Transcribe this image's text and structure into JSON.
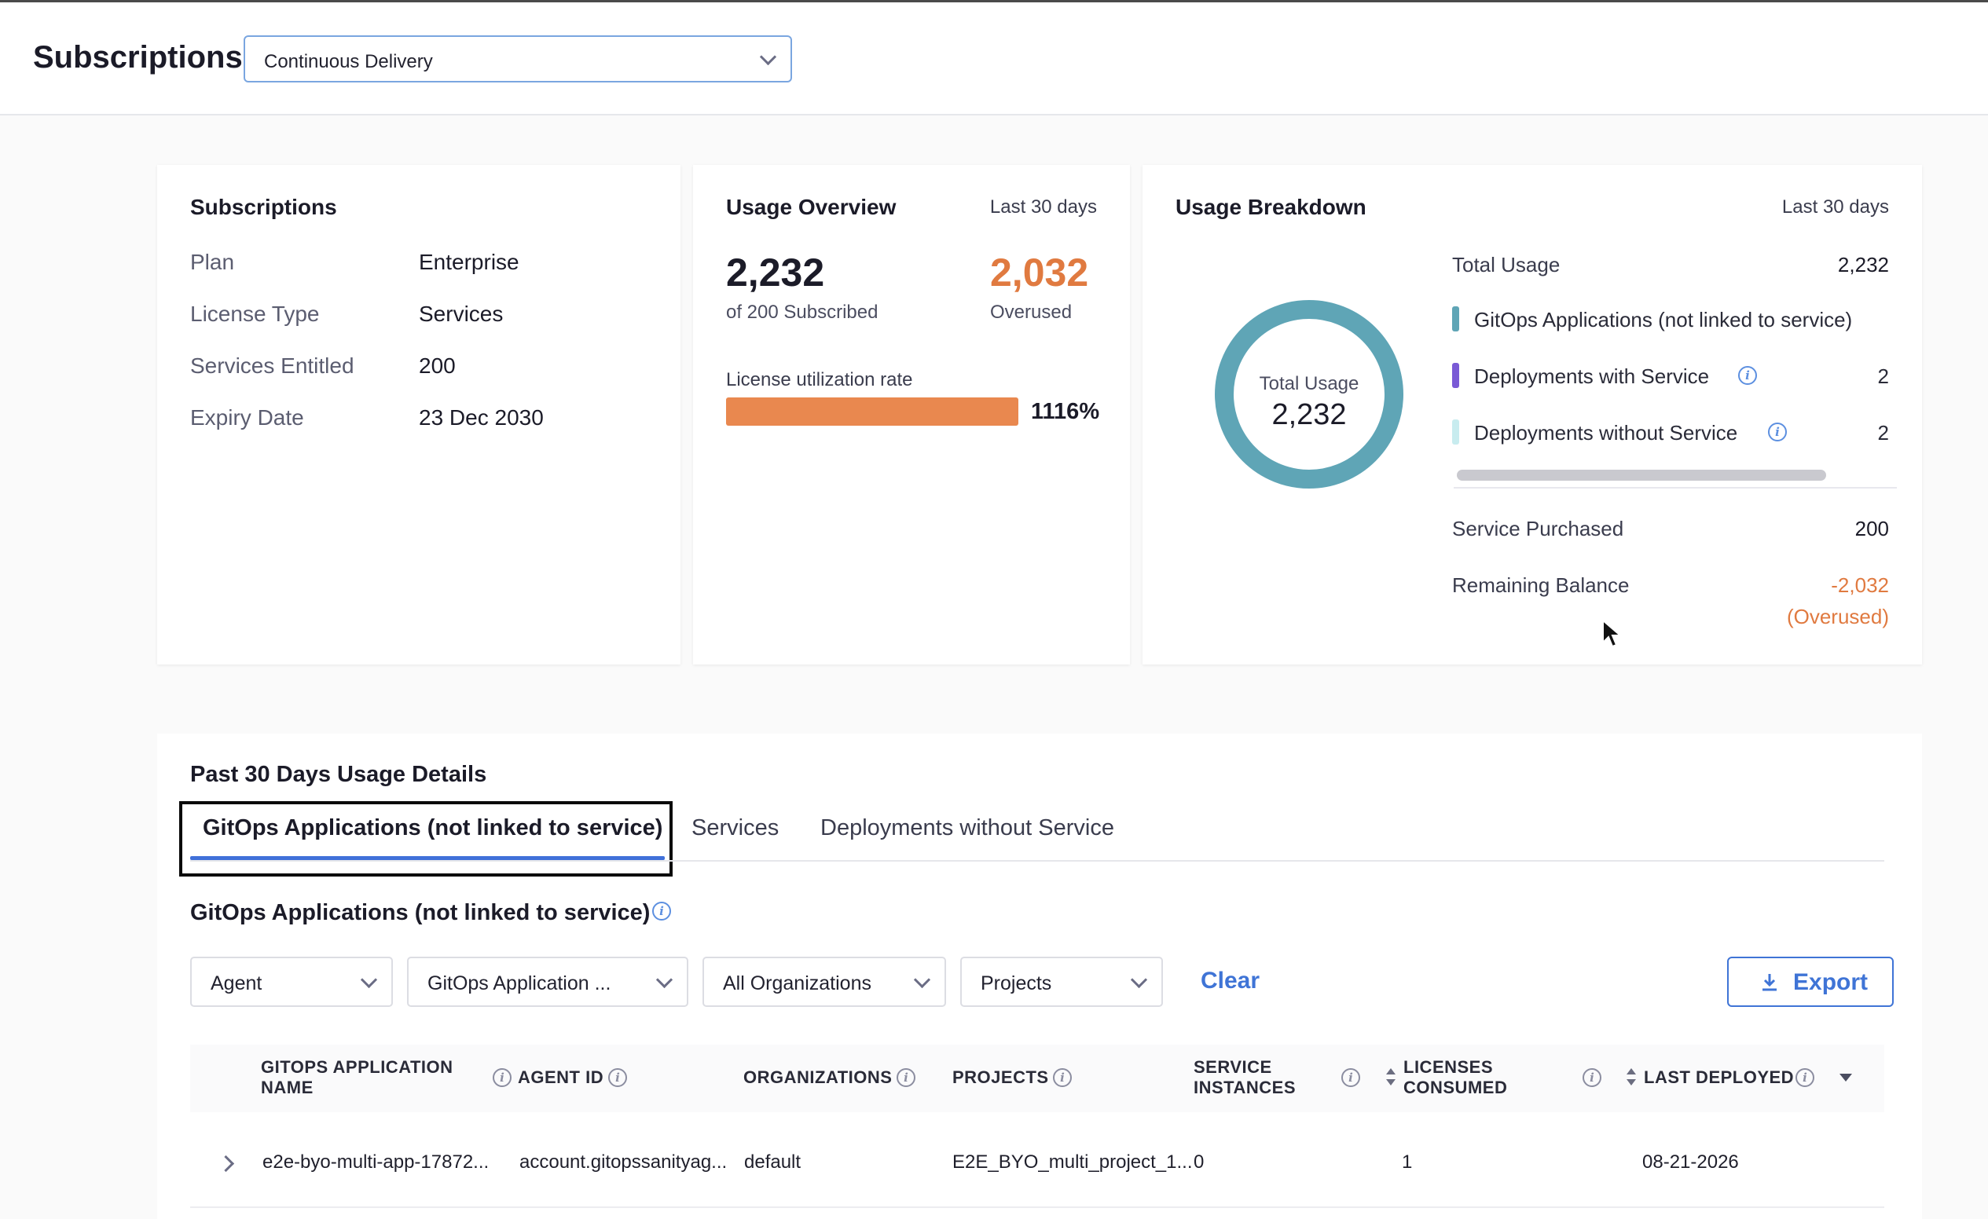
{
  "header": {
    "title": "Subscriptions",
    "module_select": {
      "value": "Continuous Delivery"
    }
  },
  "subscriptions_card": {
    "title": "Subscriptions",
    "rows": [
      {
        "label": "Plan",
        "value": "Enterprise"
      },
      {
        "label": "License Type",
        "value": "Services"
      },
      {
        "label": "Services Entitled",
        "value": "200"
      },
      {
        "label": "Expiry Date",
        "value": "23 Dec 2030"
      }
    ]
  },
  "usage_overview": {
    "title": "Usage Overview",
    "period": "Last 30 days",
    "used_value": "2,232",
    "used_caption": "of 200 Subscribed",
    "overused_value": "2,032",
    "overused_caption": "Overused",
    "utilization_label": "License utilization rate",
    "utilization_percent_text": "1116%",
    "utilization_bar_fill": 1.0
  },
  "usage_breakdown": {
    "title": "Usage Breakdown",
    "period": "Last 30 days",
    "donut_label": "Total Usage",
    "donut_value": "2,232",
    "total_usage_label": "Total Usage",
    "total_usage_value": "2,232",
    "legend": [
      {
        "label": "GitOps Applications (not linked to service)",
        "value": "",
        "color": "#5fa5b6"
      },
      {
        "label": "Deployments with Service",
        "value": "2",
        "color": "#7a5ad6"
      },
      {
        "label": "Deployments without Service",
        "value": "2",
        "color": "#c8ecef"
      }
    ],
    "service_purchased_label": "Service Purchased",
    "service_purchased_value": "200",
    "remaining_balance_label": "Remaining Balance",
    "remaining_balance_value": "-2,032",
    "remaining_balance_note": "(Overused)",
    "colors": {
      "donut": "#5fa5b6",
      "overused": "#e07a40"
    }
  },
  "details": {
    "title": "Past 30 Days Usage Details",
    "tabs": [
      {
        "label": "GitOps Applications (not linked to service)",
        "active": true
      },
      {
        "label": "Services",
        "active": false
      },
      {
        "label": "Deployments without Service",
        "active": false
      }
    ],
    "section_title": "GitOps Applications (not linked to service)",
    "filters": [
      {
        "label": "Agent"
      },
      {
        "label": "GitOps Application ..."
      },
      {
        "label": "All Organizations"
      },
      {
        "label": "Projects"
      }
    ],
    "clear_label": "Clear",
    "export_label": "Export",
    "columns": [
      {
        "line1": "GITOPS APPLICATION",
        "line2": "NAME"
      },
      {
        "line1": "AGENT ID",
        "line2": ""
      },
      {
        "line1": "ORGANIZATIONS",
        "line2": ""
      },
      {
        "line1": "PROJECTS",
        "line2": ""
      },
      {
        "line1": "SERVICE",
        "line2": "INSTANCES"
      },
      {
        "line1": "LICENSES",
        "line2": "CONSUMED"
      },
      {
        "line1": "LAST DEPLOYED",
        "line2": ""
      }
    ],
    "rows": [
      {
        "app_name": "e2e-byo-multi-app-17872...",
        "agent_id": "account.gitopssanityag...",
        "organization": "default",
        "project": "E2E_BYO_multi_project_1...",
        "service_instances": "0",
        "licenses_consumed": "1",
        "last_deployed": "08-21-2026"
      }
    ]
  }
}
